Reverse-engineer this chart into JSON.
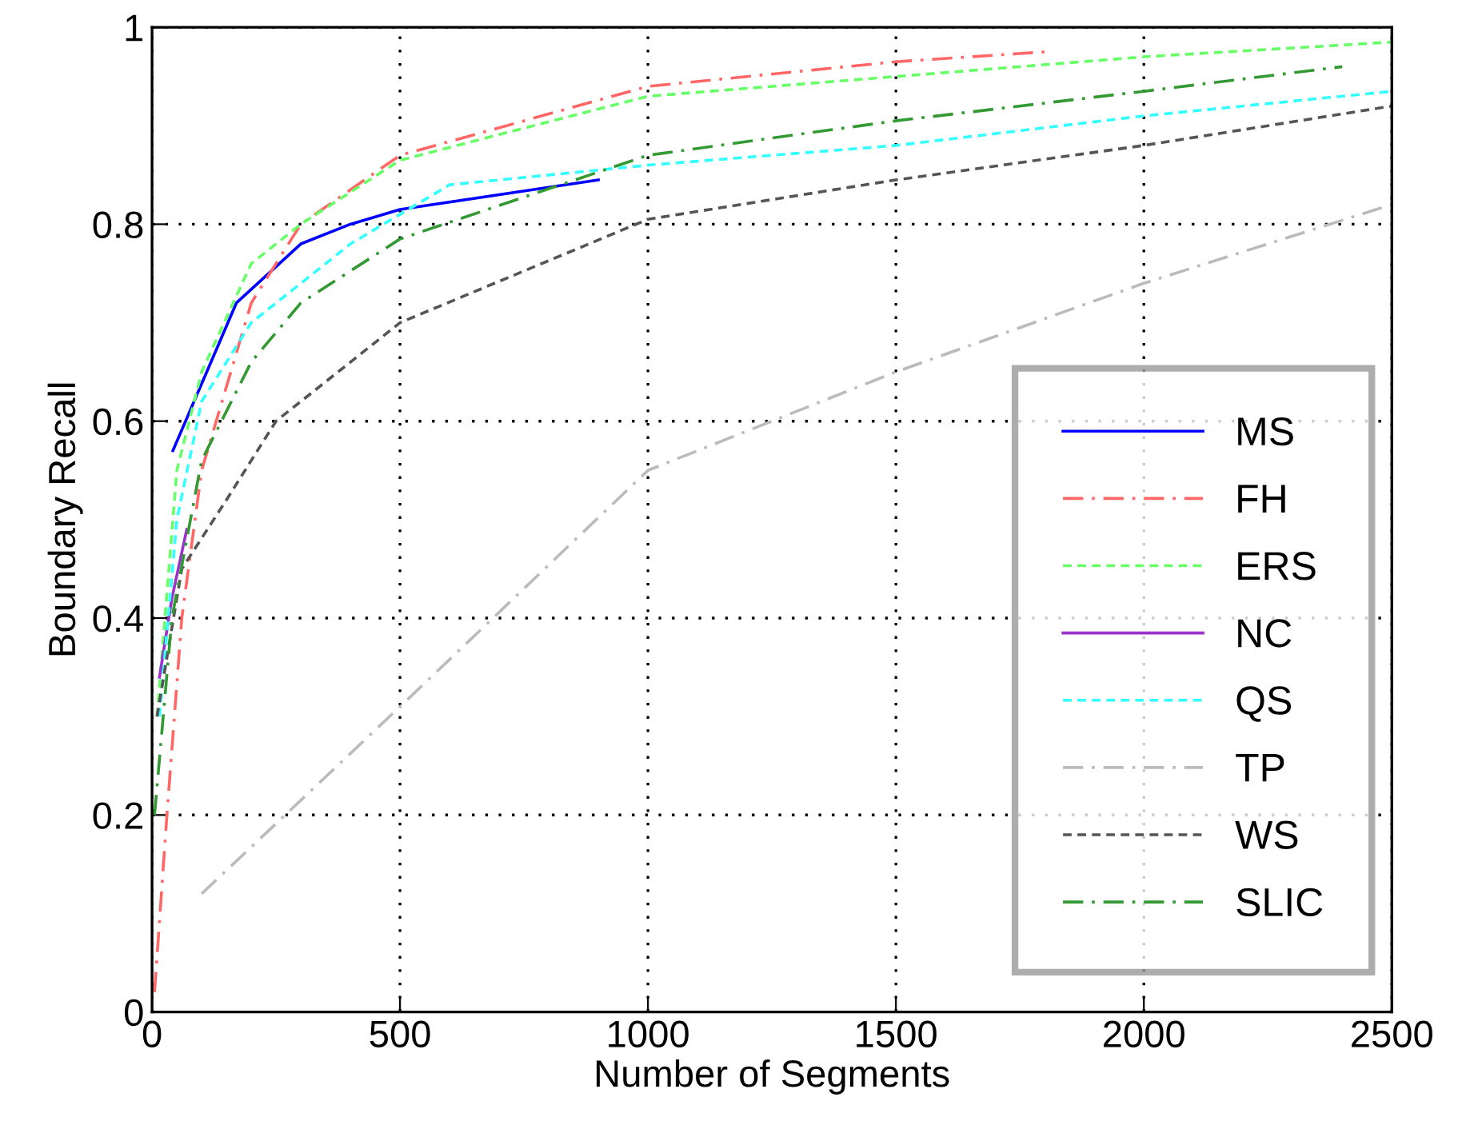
{
  "chart_data": {
    "type": "line",
    "xlabel": "Number of Segments",
    "ylabel": "Boundary Recall",
    "xlim": [
      0,
      2500
    ],
    "xticks": [
      0,
      500,
      1000,
      1500,
      2000,
      2500
    ],
    "ylim": [
      0,
      1
    ],
    "yticks": [
      0,
      0.2,
      0.4,
      0.6,
      0.8,
      1
    ],
    "grid": true,
    "legend": "bottom right",
    "marker": "none",
    "series": [
      {
        "name": "MS",
        "color": "#0000ff",
        "line_style": "solid",
        "x": [
          42,
          170,
          300,
          400,
          500,
          900
        ],
        "values": [
          0.57,
          0.72,
          0.78,
          0.8,
          0.815,
          0.845
        ]
      },
      {
        "name": "FH",
        "color": "#ff6666",
        "line_style": "dashdot",
        "x": [
          5,
          30,
          60,
          100,
          200,
          300,
          500,
          1000,
          1500,
          1800
        ],
        "values": [
          0.02,
          0.2,
          0.4,
          0.55,
          0.72,
          0.8,
          0.87,
          0.94,
          0.965,
          0.975
        ]
      },
      {
        "name": "ERS",
        "color": "#66ff66",
        "line_style": "dashed",
        "x": [
          10,
          50,
          100,
          200,
          300,
          500,
          1000,
          1500,
          2000,
          2500
        ],
        "values": [
          0.3,
          0.55,
          0.65,
          0.76,
          0.8,
          0.865,
          0.93,
          0.95,
          0.97,
          0.985
        ]
      },
      {
        "name": "NC",
        "color": "#9933cc",
        "line_style": "solid",
        "x": [
          15,
          40,
          70
        ],
        "values": [
          0.34,
          0.42,
          0.49
        ]
      },
      {
        "name": "QS",
        "color": "#33ffff",
        "line_style": "dashed",
        "x": [
          15,
          50,
          100,
          200,
          400,
          600,
          1000,
          1500,
          2000,
          2500
        ],
        "values": [
          0.3,
          0.5,
          0.62,
          0.7,
          0.78,
          0.84,
          0.86,
          0.88,
          0.91,
          0.935
        ]
      },
      {
        "name": "TP",
        "color": "#bbbbbb",
        "line_style": "dashdot",
        "x": [
          100,
          500,
          1000,
          1500,
          2000,
          2500
        ],
        "values": [
          0.12,
          0.31,
          0.55,
          0.65,
          0.74,
          0.82
        ]
      },
      {
        "name": "WS",
        "color": "#555555",
        "line_style": "dashed",
        "x": [
          10,
          60,
          150,
          250,
          500,
          1000,
          1500,
          2000,
          2500
        ],
        "values": [
          0.3,
          0.45,
          0.52,
          0.6,
          0.7,
          0.805,
          0.845,
          0.88,
          0.92
        ]
      },
      {
        "name": "SLIC",
        "color": "#339933",
        "line_style": "dashdot",
        "x": [
          5,
          40,
          100,
          200,
          300,
          500,
          1000,
          1500,
          2000,
          2400
        ],
        "values": [
          0.2,
          0.4,
          0.56,
          0.66,
          0.72,
          0.785,
          0.87,
          0.905,
          0.935,
          0.96
        ]
      }
    ]
  }
}
